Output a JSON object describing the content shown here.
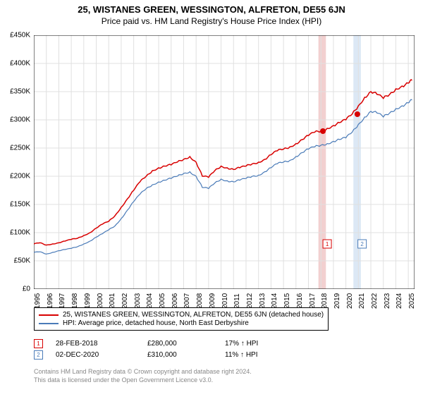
{
  "title": "25, WISTANES GREEN, WESSINGTON, ALFRETON, DE55 6JN",
  "subtitle": "Price paid vs. HM Land Registry's House Price Index (HPI)",
  "chart": {
    "type": "line",
    "background_color": "#ffffff",
    "grid_color": "#e0e0e0",
    "axis_color": "#000000",
    "title_fontsize": 13,
    "label_fontsize": 10,
    "xlim": [
      1995,
      2025.5
    ],
    "ylim": [
      0,
      450000
    ],
    "ytick_step": 50000,
    "yticks": [
      0,
      50000,
      100000,
      150000,
      200000,
      250000,
      300000,
      350000,
      400000,
      450000
    ],
    "ytick_labels": [
      "£0",
      "£50K",
      "£100K",
      "£150K",
      "£200K",
      "£250K",
      "£300K",
      "£350K",
      "£400K",
      "£450K"
    ],
    "xticks": [
      1995,
      1996,
      1997,
      1998,
      1999,
      2000,
      2001,
      2002,
      2003,
      2004,
      2005,
      2006,
      2007,
      2008,
      2009,
      2010,
      2011,
      2012,
      2013,
      2014,
      2015,
      2016,
      2017,
      2018,
      2019,
      2020,
      2021,
      2022,
      2023,
      2024,
      2025
    ],
    "series": [
      {
        "name": "25, WISTANES GREEN, WESSINGTON, ALFRETON, DE55 6JN (detached house)",
        "color": "#d80000",
        "line_width": 1.5,
        "x": [
          1995,
          1995.5,
          1996,
          1996.5,
          1997,
          1997.5,
          1998,
          1998.5,
          1999,
          1999.5,
          2000,
          2000.5,
          2001,
          2001.5,
          2002,
          2002.5,
          2003,
          2003.5,
          2004,
          2004.5,
          2005,
          2005.5,
          2006,
          2006.5,
          2007,
          2007.5,
          2008,
          2008.5,
          2009,
          2009.5,
          2010,
          2010.5,
          2011,
          2011.5,
          2012,
          2012.5,
          2013,
          2013.5,
          2014,
          2014.5,
          2015,
          2015.5,
          2016,
          2016.5,
          2017,
          2017.5,
          2018,
          2018.5,
          2019,
          2019.5,
          2020,
          2020.5,
          2021,
          2021.5,
          2022,
          2022.5,
          2023,
          2023.5,
          2024,
          2024.5,
          2025,
          2025.3
        ],
        "y": [
          80000,
          82000,
          78000,
          80000,
          82000,
          85000,
          88000,
          90000,
          95000,
          100000,
          108000,
          115000,
          120000,
          130000,
          145000,
          160000,
          175000,
          190000,
          200000,
          210000,
          215000,
          218000,
          220000,
          225000,
          230000,
          235000,
          225000,
          200000,
          198000,
          210000,
          218000,
          215000,
          212000,
          215000,
          218000,
          222000,
          225000,
          230000,
          238000,
          245000,
          248000,
          252000,
          258000,
          265000,
          272000,
          278000,
          280000,
          285000,
          290000,
          295000,
          300000,
          310000,
          325000,
          340000,
          350000,
          345000,
          338000,
          345000,
          355000,
          360000,
          365000,
          370000
        ]
      },
      {
        "name": "HPI: Average price, detached house, North East Derbyshire",
        "color": "#4a7bb8",
        "line_width": 1.2,
        "x": [
          1995,
          1995.5,
          1996,
          1996.5,
          1997,
          1997.5,
          1998,
          1998.5,
          1999,
          1999.5,
          2000,
          2000.5,
          2001,
          2001.5,
          2002,
          2002.5,
          2003,
          2003.5,
          2004,
          2004.5,
          2005,
          2005.5,
          2006,
          2006.5,
          2007,
          2007.5,
          2008,
          2008.5,
          2009,
          2009.5,
          2010,
          2010.5,
          2011,
          2011.5,
          2012,
          2012.5,
          2013,
          2013.5,
          2014,
          2014.5,
          2015,
          2015.5,
          2016,
          2016.5,
          2017,
          2017.5,
          2018,
          2018.5,
          2019,
          2019.5,
          2020,
          2020.5,
          2021,
          2021.5,
          2022,
          2022.5,
          2023,
          2023.5,
          2024,
          2024.5,
          2025,
          2025.3
        ],
        "y": [
          65000,
          66000,
          62000,
          65000,
          68000,
          70000,
          72000,
          75000,
          80000,
          85000,
          92000,
          98000,
          105000,
          112000,
          125000,
          140000,
          155000,
          168000,
          178000,
          185000,
          190000,
          193000,
          196000,
          200000,
          205000,
          208000,
          200000,
          180000,
          178000,
          188000,
          195000,
          192000,
          190000,
          193000,
          196000,
          200000,
          202000,
          208000,
          215000,
          222000,
          225000,
          228000,
          235000,
          242000,
          248000,
          252000,
          255000,
          258000,
          262000,
          265000,
          268000,
          278000,
          292000,
          305000,
          315000,
          312000,
          305000,
          312000,
          320000,
          325000,
          330000,
          335000
        ]
      }
    ],
    "shaded_regions": [
      {
        "x_start": 2017.8,
        "x_end": 2018.4,
        "color": "#f2d0d0"
      },
      {
        "x_start": 2020.6,
        "x_end": 2021.2,
        "color": "#dce8f5"
      }
    ],
    "point_markers": [
      {
        "label": "1",
        "x": 2018.16,
        "y": 280000,
        "marker_color": "#d80000",
        "box_color": "#d80000",
        "box_x": 2018.5,
        "box_y": 80000
      },
      {
        "label": "2",
        "x": 2020.92,
        "y": 310000,
        "marker_color": "#d80000",
        "box_color": "#4a7bb8",
        "box_x": 2021.3,
        "box_y": 80000
      }
    ]
  },
  "legend": {
    "items": [
      {
        "color": "#d80000",
        "label": "25, WISTANES GREEN, WESSINGTON, ALFRETON, DE55 6JN (detached house)"
      },
      {
        "color": "#4a7bb8",
        "label": "HPI: Average price, detached house, North East Derbyshire"
      }
    ]
  },
  "marker_rows": [
    {
      "n": "1",
      "box_color": "#d80000",
      "date": "28-FEB-2018",
      "price": "£280,000",
      "pct": "17% ↑ HPI"
    },
    {
      "n": "2",
      "box_color": "#4a7bb8",
      "date": "02-DEC-2020",
      "price": "£310,000",
      "pct": "11% ↑ HPI"
    }
  ],
  "footer": {
    "line1": "Contains HM Land Registry data © Crown copyright and database right 2024.",
    "line2": "This data is licensed under the Open Government Licence v3.0."
  }
}
